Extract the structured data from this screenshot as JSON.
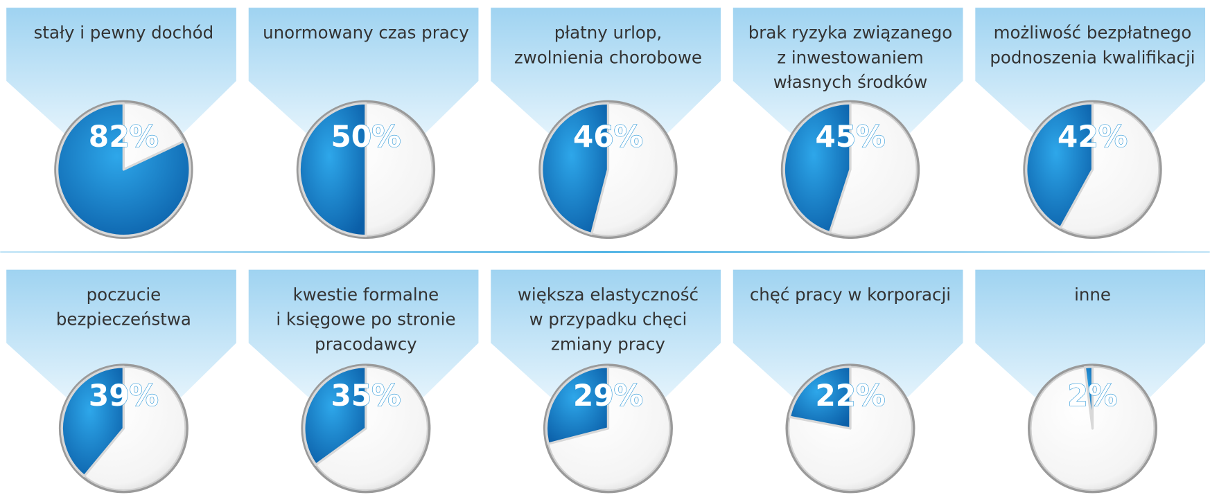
{
  "chart_data": [
    {
      "type": "pie",
      "title": [
        "stały i pewny dochód"
      ],
      "values": [
        82
      ],
      "value_labels": [
        "82%"
      ]
    },
    {
      "type": "pie",
      "title": [
        "unormowany czas pracy"
      ],
      "values": [
        50
      ],
      "value_labels": [
        "50%"
      ]
    },
    {
      "type": "pie",
      "title": [
        "płatny urlop,",
        "zwolnienia chorobowe"
      ],
      "values": [
        46
      ],
      "value_labels": [
        "46%"
      ]
    },
    {
      "type": "pie",
      "title": [
        "brak ryzyka związanego",
        "z inwestowaniem",
        "własnych środków"
      ],
      "values": [
        45
      ],
      "value_labels": [
        "45%"
      ]
    },
    {
      "type": "pie",
      "title": [
        "możliwość bezpłatnego",
        "podnoszenia kwalifikacji"
      ],
      "values": [
        42
      ],
      "value_labels": [
        "42%"
      ]
    },
    {
      "type": "pie",
      "title": [
        "poczucie",
        "bezpieczeństwa"
      ],
      "values": [
        39
      ],
      "value_labels": [
        "39%"
      ]
    },
    {
      "type": "pie",
      "title": [
        "kwestie formalne",
        "i księgowe po stronie",
        "pracodawcy"
      ],
      "values": [
        35
      ],
      "value_labels": [
        "35%"
      ]
    },
    {
      "type": "pie",
      "title": [
        "większa elastyczność",
        "w przypadku chęci",
        "zmiany pracy"
      ],
      "values": [
        29
      ],
      "value_labels": [
        "29%"
      ]
    },
    {
      "type": "pie",
      "title": [
        "chęć pracy w korporacji"
      ],
      "values": [
        22
      ],
      "value_labels": [
        "22%"
      ]
    },
    {
      "type": "pie",
      "title": [
        "inne"
      ],
      "values": [
        2
      ],
      "value_labels": [
        "2%"
      ]
    }
  ]
}
